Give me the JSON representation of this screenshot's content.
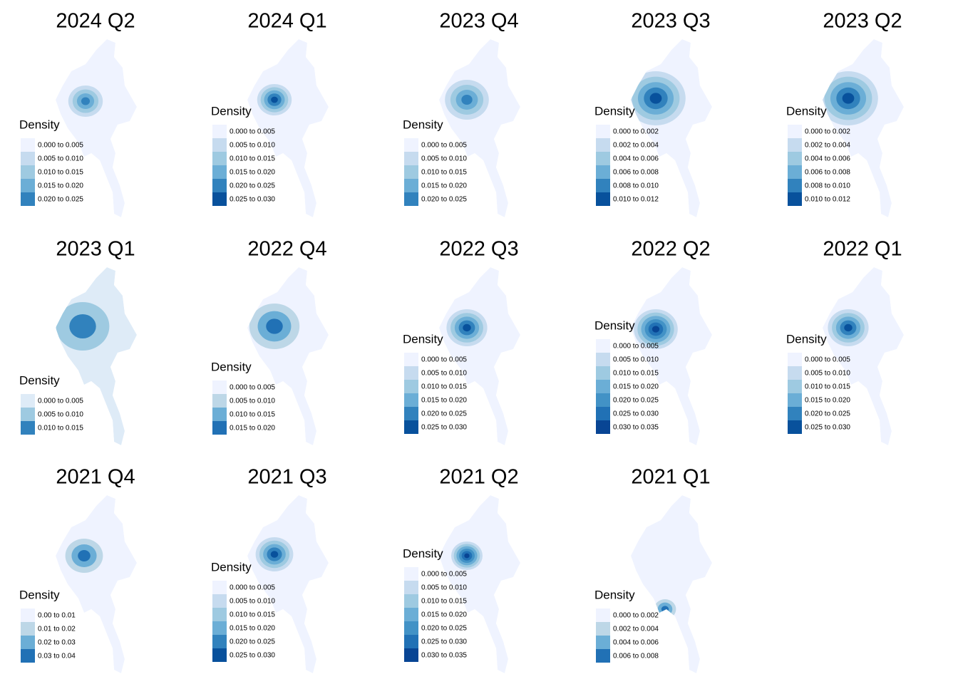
{
  "panels": [
    {
      "title": "2024 Q2",
      "legend": {
        "title": "Density",
        "items": [
          {
            "label": "0.000 to 0.005",
            "color": "#eff3ff"
          },
          {
            "label": "0.005 to 0.010",
            "color": "#c6dbef"
          },
          {
            "label": "0.010 to 0.015",
            "color": "#9ecae1"
          },
          {
            "label": "0.015 to 0.020",
            "color": "#6baed6"
          },
          {
            "label": "0.020 to 0.025",
            "color": "#3182bd"
          }
        ]
      }
    },
    {
      "title": "2024 Q1",
      "legend": {
        "title": "Density",
        "items": [
          {
            "label": "0.000 to 0.005",
            "color": "#eff3ff"
          },
          {
            "label": "0.005 to 0.010",
            "color": "#c6dbef"
          },
          {
            "label": "0.010 to 0.015",
            "color": "#9ecae1"
          },
          {
            "label": "0.015 to 0.020",
            "color": "#6baed6"
          },
          {
            "label": "0.020 to 0.025",
            "color": "#3182bd"
          },
          {
            "label": "0.025 to 0.030",
            "color": "#08519c"
          }
        ]
      }
    },
    {
      "title": "2023 Q4",
      "legend": {
        "title": "Density",
        "items": [
          {
            "label": "0.000 to 0.005",
            "color": "#eff3ff"
          },
          {
            "label": "0.005 to 0.010",
            "color": "#c6dbef"
          },
          {
            "label": "0.010 to 0.015",
            "color": "#9ecae1"
          },
          {
            "label": "0.015 to 0.020",
            "color": "#6baed6"
          },
          {
            "label": "0.020 to 0.025",
            "color": "#3182bd"
          }
        ]
      }
    },
    {
      "title": "2023 Q3",
      "legend": {
        "title": "Density",
        "items": [
          {
            "label": "0.000 to 0.002",
            "color": "#eff3ff"
          },
          {
            "label": "0.002 to 0.004",
            "color": "#c6dbef"
          },
          {
            "label": "0.004 to 0.006",
            "color": "#9ecae1"
          },
          {
            "label": "0.006 to 0.008",
            "color": "#6baed6"
          },
          {
            "label": "0.008 to 0.010",
            "color": "#3182bd"
          },
          {
            "label": "0.010 to 0.012",
            "color": "#08519c"
          }
        ]
      }
    },
    {
      "title": "2023 Q2",
      "legend": {
        "title": "Density",
        "items": [
          {
            "label": "0.000 to 0.002",
            "color": "#eff3ff"
          },
          {
            "label": "0.002 to 0.004",
            "color": "#c6dbef"
          },
          {
            "label": "0.004 to 0.006",
            "color": "#9ecae1"
          },
          {
            "label": "0.006 to 0.008",
            "color": "#6baed6"
          },
          {
            "label": "0.008 to 0.010",
            "color": "#3182bd"
          },
          {
            "label": "0.010 to 0.012",
            "color": "#08519c"
          }
        ]
      }
    },
    {
      "title": "2023 Q1",
      "legend": {
        "title": "Density",
        "items": [
          {
            "label": "0.000 to 0.005",
            "color": "#deebf7"
          },
          {
            "label": "0.005 to 0.010",
            "color": "#9ecae1"
          },
          {
            "label": "0.010 to 0.015",
            "color": "#3182bd"
          }
        ]
      }
    },
    {
      "title": "2022 Q4",
      "legend": {
        "title": "Density",
        "items": [
          {
            "label": "0.000 to 0.005",
            "color": "#eff3ff"
          },
          {
            "label": "0.005 to 0.010",
            "color": "#bdd7e7"
          },
          {
            "label": "0.010 to 0.015",
            "color": "#6baed6"
          },
          {
            "label": "0.015 to 0.020",
            "color": "#2171b5"
          }
        ]
      }
    },
    {
      "title": "2022 Q3",
      "legend": {
        "title": "Density",
        "items": [
          {
            "label": "0.000 to 0.005",
            "color": "#eff3ff"
          },
          {
            "label": "0.005 to 0.010",
            "color": "#c6dbef"
          },
          {
            "label": "0.010 to 0.015",
            "color": "#9ecae1"
          },
          {
            "label": "0.015 to 0.020",
            "color": "#6baed6"
          },
          {
            "label": "0.020 to 0.025",
            "color": "#3182bd"
          },
          {
            "label": "0.025 to 0.030",
            "color": "#08519c"
          }
        ]
      }
    },
    {
      "title": "2022 Q2",
      "legend": {
        "title": "Density",
        "items": [
          {
            "label": "0.000 to 0.005",
            "color": "#eff3ff"
          },
          {
            "label": "0.005 to 0.010",
            "color": "#c6dbef"
          },
          {
            "label": "0.010 to 0.015",
            "color": "#9ecae1"
          },
          {
            "label": "0.015 to 0.020",
            "color": "#6baed6"
          },
          {
            "label": "0.020 to 0.025",
            "color": "#4292c6"
          },
          {
            "label": "0.025 to 0.030",
            "color": "#2171b5"
          },
          {
            "label": "0.030 to 0.035",
            "color": "#084594"
          }
        ]
      }
    },
    {
      "title": "2022 Q1",
      "legend": {
        "title": "Density",
        "items": [
          {
            "label": "0.000 to 0.005",
            "color": "#eff3ff"
          },
          {
            "label": "0.005 to 0.010",
            "color": "#c6dbef"
          },
          {
            "label": "0.010 to 0.015",
            "color": "#9ecae1"
          },
          {
            "label": "0.015 to 0.020",
            "color": "#6baed6"
          },
          {
            "label": "0.020 to 0.025",
            "color": "#3182bd"
          },
          {
            "label": "0.025 to 0.030",
            "color": "#08519c"
          }
        ]
      }
    },
    {
      "title": "2021 Q4",
      "legend": {
        "title": "Density",
        "items": [
          {
            "label": "0.00 to 0.01",
            "color": "#eff3ff"
          },
          {
            "label": "0.01 to 0.02",
            "color": "#bdd7e7"
          },
          {
            "label": "0.02 to 0.03",
            "color": "#6baed6"
          },
          {
            "label": "0.03 to 0.04",
            "color": "#2171b5"
          }
        ]
      }
    },
    {
      "title": "2021 Q3",
      "legend": {
        "title": "Density",
        "items": [
          {
            "label": "0.000 to 0.005",
            "color": "#eff3ff"
          },
          {
            "label": "0.005 to 0.010",
            "color": "#c6dbef"
          },
          {
            "label": "0.010 to 0.015",
            "color": "#9ecae1"
          },
          {
            "label": "0.015 to 0.020",
            "color": "#6baed6"
          },
          {
            "label": "0.020 to 0.025",
            "color": "#3182bd"
          },
          {
            "label": "0.025 to 0.030",
            "color": "#08519c"
          }
        ]
      }
    },
    {
      "title": "2021 Q2",
      "legend": {
        "title": "Density",
        "items": [
          {
            "label": "0.000 to 0.005",
            "color": "#eff3ff"
          },
          {
            "label": "0.005 to 0.010",
            "color": "#c6dbef"
          },
          {
            "label": "0.010 to 0.015",
            "color": "#9ecae1"
          },
          {
            "label": "0.015 to 0.020",
            "color": "#6baed6"
          },
          {
            "label": "0.020 to 0.025",
            "color": "#4292c6"
          },
          {
            "label": "0.025 to 0.030",
            "color": "#2171b5"
          },
          {
            "label": "0.030 to 0.035",
            "color": "#084594"
          }
        ]
      }
    },
    {
      "title": "2021 Q1",
      "legend": {
        "title": "Density",
        "items": [
          {
            "label": "0.000 to 0.002",
            "color": "#eff3ff"
          },
          {
            "label": "0.002 to 0.004",
            "color": "#bdd7e7"
          },
          {
            "label": "0.004 to 0.006",
            "color": "#6baed6"
          },
          {
            "label": "0.006 to 0.008",
            "color": "#2171b5"
          }
        ]
      }
    }
  ]
}
